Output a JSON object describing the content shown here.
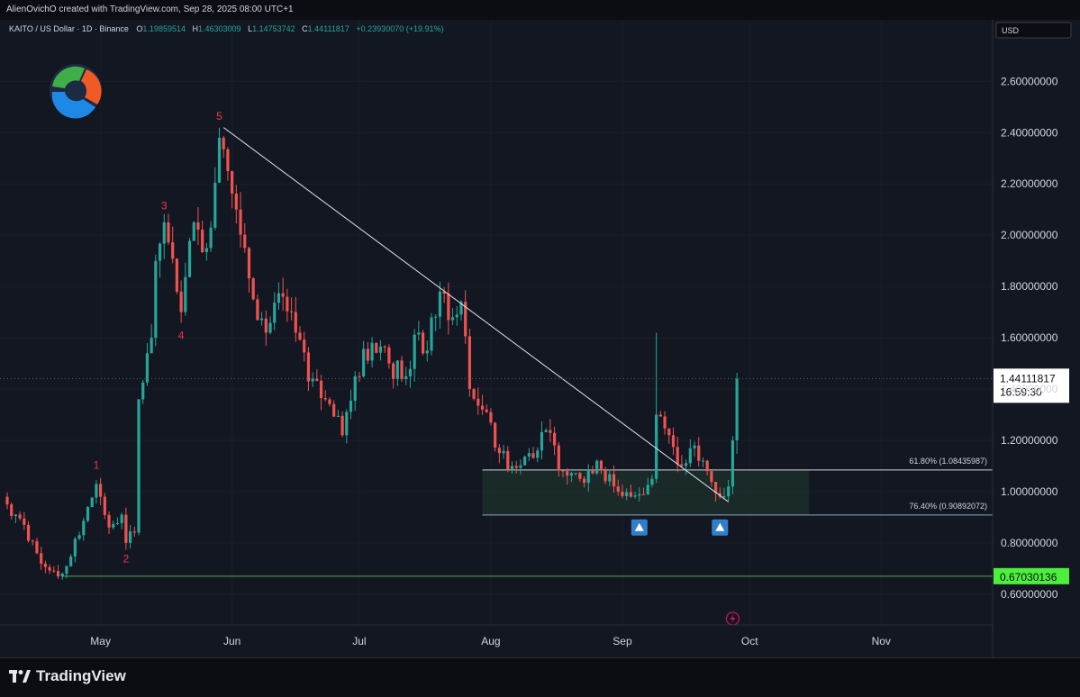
{
  "header": {
    "attribution": "AlienOvichO created with TradingView.com, Sep 28, 2025 08:00 UTC+1"
  },
  "legend": {
    "symbol": "KAITO / US Dollar · 1D · Binance",
    "o_label": "O",
    "o_value": "1.19859514",
    "h_label": "H",
    "h_value": "1.46303009",
    "l_label": "L",
    "l_value": "1.14753742",
    "c_label": "C",
    "c_value": "1.44111817",
    "change": "+0.23930070 (+19.91%)"
  },
  "currency": "USD",
  "colors": {
    "background": "#131722",
    "up": "#26a69a",
    "down": "#ef5350",
    "wave_label": "#f23645",
    "support_line": "#4caf50",
    "support_badge": "#4cef3c",
    "zone_fill": "#1f3a30",
    "arrow_badge": "#2f80c8",
    "trendline": "#e0e3eb",
    "lightning": "#c2185b"
  },
  "chart_data": {
    "type": "candlestick",
    "title": "",
    "xlabel": "",
    "ylabel": "",
    "ylim": [
      0.48,
      2.84
    ],
    "y_ticks": [
      {
        "value": 0.6,
        "label": "0.60000000"
      },
      {
        "value": 0.8,
        "label": "0.80000000"
      },
      {
        "value": 1.0,
        "label": "1.00000000"
      },
      {
        "value": 1.2,
        "label": "1.20000000"
      },
      {
        "value": 1.4,
        "label": "1.40000000"
      },
      {
        "value": 1.6,
        "label": "1.60000000"
      },
      {
        "value": 1.8,
        "label": "1.80000000"
      },
      {
        "value": 2.0,
        "label": "2.00000000"
      },
      {
        "value": 2.2,
        "label": "2.20000000"
      },
      {
        "value": 2.4,
        "label": "2.40000000"
      },
      {
        "value": 2.6,
        "label": "2.60000000"
      }
    ],
    "x_start": "2025-04-09",
    "x_ticks": [
      {
        "date": "2025-05-01",
        "label": "May"
      },
      {
        "date": "2025-06-01",
        "label": "Jun"
      },
      {
        "date": "2025-07-01",
        "label": "Jul"
      },
      {
        "date": "2025-08-01",
        "label": "Aug"
      },
      {
        "date": "2025-09-01",
        "label": "Sep"
      },
      {
        "date": "2025-10-01",
        "label": "Oct"
      },
      {
        "date": "2025-11-01",
        "label": "Nov"
      }
    ],
    "anchors": [
      [
        "2025-04-09",
        0.95
      ],
      [
        "2025-04-13",
        0.87
      ],
      [
        "2025-04-16",
        0.76
      ],
      [
        "2025-04-20",
        0.69
      ],
      [
        "2025-04-22",
        0.68
      ],
      [
        "2025-04-26",
        0.83
      ],
      [
        "2025-04-30",
        1.03
      ],
      [
        "2025-05-01",
        0.98
      ],
      [
        "2025-05-03",
        0.86
      ],
      [
        "2025-05-06",
        0.91
      ],
      [
        "2025-05-07",
        0.8
      ],
      [
        "2025-05-09",
        0.84
      ],
      [
        "2025-05-10",
        1.36
      ],
      [
        "2025-05-13",
        1.6
      ],
      [
        "2025-05-14",
        1.9
      ],
      [
        "2025-05-16",
        2.05
      ],
      [
        "2025-05-19",
        1.78
      ],
      [
        "2025-05-20",
        1.7
      ],
      [
        "2025-05-23",
        2.05
      ],
      [
        "2025-05-26",
        1.95
      ],
      [
        "2025-05-29",
        2.38
      ],
      [
        "2025-05-31",
        2.25
      ],
      [
        "2025-06-02",
        2.1
      ],
      [
        "2025-06-04",
        1.95
      ],
      [
        "2025-06-06",
        1.75
      ],
      [
        "2025-06-09",
        1.62
      ],
      [
        "2025-06-13",
        1.76
      ],
      [
        "2025-06-16",
        1.62
      ],
      [
        "2025-06-19",
        1.43
      ],
      [
        "2025-06-23",
        1.36
      ],
      [
        "2025-06-27",
        1.22
      ],
      [
        "2025-06-30",
        1.45
      ],
      [
        "2025-07-04",
        1.58
      ],
      [
        "2025-07-08",
        1.5
      ],
      [
        "2025-07-12",
        1.45
      ],
      [
        "2025-07-15",
        1.62
      ],
      [
        "2025-07-17",
        1.55
      ],
      [
        "2025-07-20",
        1.78
      ],
      [
        "2025-07-23",
        1.68
      ],
      [
        "2025-07-25",
        1.74
      ],
      [
        "2025-07-27",
        1.4
      ],
      [
        "2025-07-30",
        1.32
      ],
      [
        "2025-08-03",
        1.15
      ],
      [
        "2025-08-06",
        1.1
      ],
      [
        "2025-08-10",
        1.15
      ],
      [
        "2025-08-14",
        1.24
      ],
      [
        "2025-08-18",
        1.08
      ],
      [
        "2025-08-22",
        1.05
      ],
      [
        "2025-08-26",
        1.12
      ],
      [
        "2025-08-30",
        1.02
      ],
      [
        "2025-09-03",
        0.98
      ],
      [
        "2025-09-05",
        0.99
      ],
      [
        "2025-09-08",
        1.05
      ],
      [
        "2025-09-09",
        1.3
      ],
      [
        "2025-09-12",
        1.22
      ],
      [
        "2025-09-15",
        1.1
      ],
      [
        "2025-09-18",
        1.18
      ],
      [
        "2025-09-21",
        1.08
      ],
      [
        "2025-09-24",
        0.98
      ],
      [
        "2025-09-26",
        1.02
      ],
      [
        "2025-09-27",
        1.2
      ],
      [
        "2025-09-28",
        1.44
      ]
    ],
    "wave_labels": [
      {
        "label": "1",
        "date": "2025-04-30",
        "value": 1.09,
        "pos": "above"
      },
      {
        "label": "2",
        "date": "2025-05-07",
        "value": 0.76,
        "pos": "below"
      },
      {
        "label": "3",
        "date": "2025-05-16",
        "value": 2.1,
        "pos": "above"
      },
      {
        "label": "4",
        "date": "2025-05-20",
        "value": 1.63,
        "pos": "below"
      },
      {
        "label": "5",
        "date": "2025-05-29",
        "value": 2.45,
        "pos": "above"
      }
    ],
    "trendline": {
      "from": [
        "2025-05-30",
        2.42
      ],
      "to": [
        "2025-09-26",
        0.96
      ]
    },
    "fib_zone": {
      "from": "2025-07-30",
      "to": "2025-10-15",
      "upper": {
        "value": 1.08435987,
        "label": "61.80% (1.08435987)"
      },
      "lower": {
        "value": 0.90892072,
        "label": "76.40% (0.90892072)"
      }
    },
    "support": {
      "from": "2025-04-22",
      "value": 0.67030136,
      "label": "0.67030136"
    },
    "last_price": {
      "value": 1.44111817,
      "label": "1.44111817",
      "countdown": "16:59:30"
    },
    "arrow_markers": [
      {
        "date": "2025-09-05",
        "value": 0.86
      },
      {
        "date": "2025-09-24",
        "value": 0.86
      }
    ],
    "event_marker": {
      "date": "2025-09-27"
    }
  },
  "footer": {
    "logo_text": "TradingView"
  }
}
